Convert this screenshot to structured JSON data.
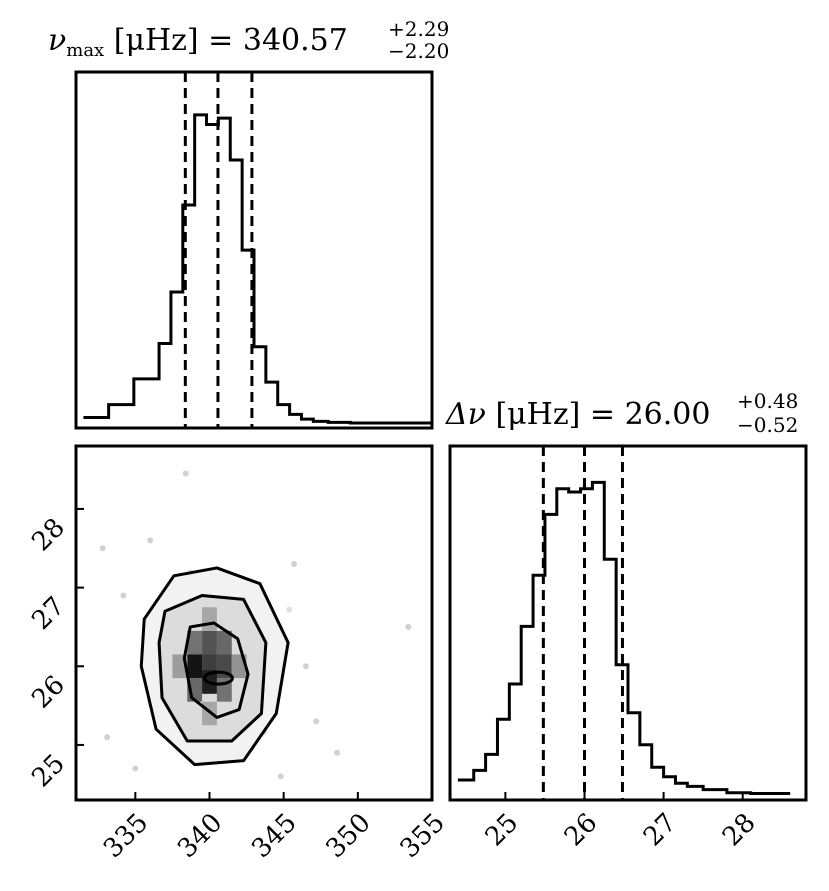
{
  "chart_data": [
    {
      "type": "histogram",
      "panel": "top-left",
      "title": {
        "symbol": "ν",
        "sub": "max",
        "unit": "[μHz]",
        "eq": "=",
        "value": "340.57",
        "plus": "+2.29",
        "minus": "−2.20"
      },
      "bins": [
        331.5,
        333.2,
        334.9,
        336.6,
        337.4,
        338.2,
        339.0,
        339.8,
        340.6,
        341.4,
        342.2,
        343.0,
        343.8,
        344.6,
        345.4,
        346.2,
        347.0,
        348.0,
        349.5,
        355
      ],
      "counts": [
        0.02,
        0.06,
        0.14,
        0.25,
        0.41,
        0.68,
        0.96,
        0.93,
        0.95,
        0.82,
        0.54,
        0.24,
        0.13,
        0.06,
        0.03,
        0.015,
        0.008,
        0.005,
        0.003
      ],
      "quantiles": [
        338.37,
        340.57,
        342.86
      ],
      "xlim": [
        331,
        355
      ],
      "ylim": [
        0,
        1.0
      ]
    },
    {
      "type": "heatmap",
      "panel": "bottom-left",
      "contour_style": "2d-histogram-with-contours",
      "x_ticks": [
        335,
        340,
        345,
        350,
        355
      ],
      "y_ticks": [
        25,
        26,
        27,
        28
      ],
      "xlim": [
        331,
        355
      ],
      "ylim": [
        24.3,
        28.8
      ],
      "outlier_points": [
        [
          338.4,
          28.45
        ],
        [
          332.8,
          27.5
        ],
        [
          353.4,
          26.5
        ],
        [
          348.6,
          24.9
        ],
        [
          334.2,
          26.9
        ],
        [
          345.7,
          27.3
        ],
        [
          347.2,
          25.3
        ],
        [
          333.1,
          25.1
        ],
        [
          336.0,
          27.6
        ],
        [
          344.8,
          24.6
        ],
        [
          335.0,
          24.7
        ],
        [
          346.5,
          26.0
        ]
      ],
      "density_cells": [
        {
          "x": 339.0,
          "y": 26.3,
          "v": 0.55
        },
        {
          "x": 340.0,
          "y": 26.3,
          "v": 0.7
        },
        {
          "x": 341.0,
          "y": 26.3,
          "v": 0.6
        },
        {
          "x": 339.0,
          "y": 26.0,
          "v": 1.0
        },
        {
          "x": 340.0,
          "y": 26.0,
          "v": 0.8
        },
        {
          "x": 341.0,
          "y": 26.0,
          "v": 0.75
        },
        {
          "x": 339.0,
          "y": 25.7,
          "v": 0.6
        },
        {
          "x": 340.0,
          "y": 25.8,
          "v": 0.95
        },
        {
          "x": 341.0,
          "y": 25.7,
          "v": 0.55
        },
        {
          "x": 338.0,
          "y": 26.0,
          "v": 0.35
        },
        {
          "x": 342.0,
          "y": 26.0,
          "v": 0.4
        },
        {
          "x": 340.0,
          "y": 25.4,
          "v": 0.3
        },
        {
          "x": 340.0,
          "y": 26.6,
          "v": 0.3
        }
      ],
      "contours": [
        [
          [
            338.7,
            26.5
          ],
          [
            340.3,
            26.55
          ],
          [
            341.9,
            26.35
          ],
          [
            342.6,
            25.9
          ],
          [
            342.0,
            25.45
          ],
          [
            340.5,
            25.35
          ],
          [
            338.8,
            25.6
          ],
          [
            338.3,
            26.1
          ]
        ],
        [
          [
            337.0,
            26.7
          ],
          [
            339.5,
            26.9
          ],
          [
            342.3,
            26.85
          ],
          [
            343.8,
            26.3
          ],
          [
            343.5,
            25.4
          ],
          [
            341.5,
            25.05
          ],
          [
            338.5,
            25.05
          ],
          [
            336.8,
            25.6
          ],
          [
            336.6,
            26.3
          ]
        ],
        [
          [
            335.6,
            26.6
          ],
          [
            337.6,
            27.15
          ],
          [
            340.5,
            27.25
          ],
          [
            343.4,
            27.05
          ],
          [
            345.3,
            26.3
          ],
          [
            344.5,
            25.4
          ],
          [
            342.3,
            24.8
          ],
          [
            339.0,
            24.75
          ],
          [
            336.4,
            25.2
          ],
          [
            335.4,
            26.0
          ]
        ]
      ]
    },
    {
      "type": "histogram",
      "panel": "bottom-right",
      "title": {
        "symbol": "Δν",
        "unit": "[μHz]",
        "eq": "=",
        "value": "26.00",
        "plus": "+0.48",
        "minus": "−0.52"
      },
      "bins": [
        24.4,
        24.6,
        24.75,
        24.9,
        25.05,
        25.2,
        25.35,
        25.5,
        25.65,
        25.8,
        25.95,
        26.1,
        26.25,
        26.4,
        26.55,
        26.7,
        26.85,
        27.0,
        27.15,
        27.3,
        27.5,
        27.8,
        28.1,
        28.6
      ],
      "counts": [
        0.05,
        0.08,
        0.13,
        0.24,
        0.35,
        0.53,
        0.69,
        0.88,
        0.96,
        0.95,
        0.96,
        0.98,
        0.74,
        0.41,
        0.26,
        0.16,
        0.09,
        0.06,
        0.04,
        0.03,
        0.02,
        0.01,
        0.008
      ],
      "quantiles": [
        25.48,
        26.0,
        26.48
      ],
      "x_ticks": [
        25,
        26,
        27,
        28
      ],
      "xlim": [
        24.3,
        28.8
      ],
      "ylim": [
        0,
        1.0
      ]
    }
  ]
}
